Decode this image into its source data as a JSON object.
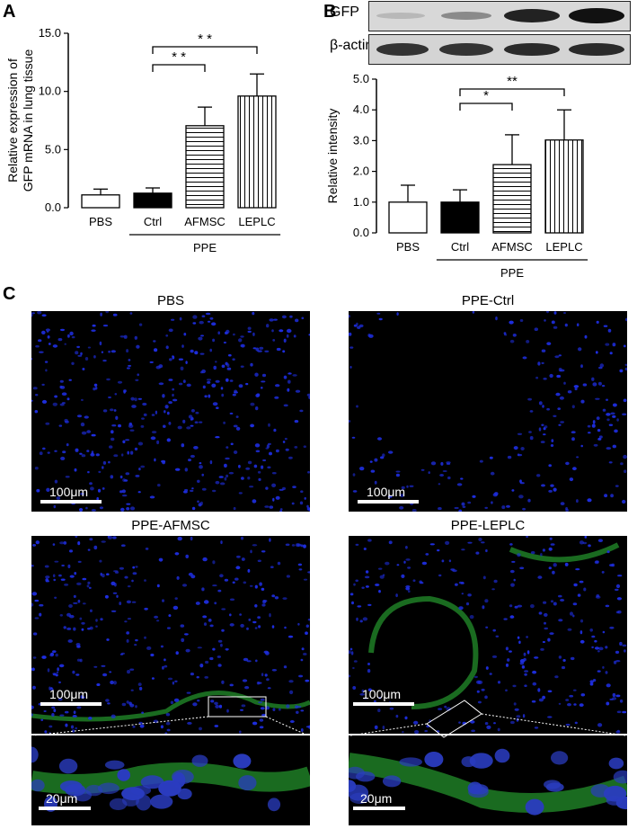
{
  "panels": {
    "a": "A",
    "b": "B",
    "c": "C"
  },
  "chart_data": [
    {
      "type": "bar",
      "panel": "A",
      "categories": [
        "PBS",
        "Ctrl",
        "AFMSC",
        "LEPLC"
      ],
      "values": [
        1.1,
        1.25,
        7.05,
        9.6
      ],
      "errors": [
        0.5,
        0.45,
        1.6,
        1.9
      ],
      "ylabel": [
        "Relative expression of",
        "GFP mRNA in lung tissue"
      ],
      "ylim": [
        0,
        15
      ],
      "yticks": [
        "0.0",
        "5.0",
        "10.0",
        "15.0"
      ],
      "group_label": "PPE",
      "significance": [
        {
          "from": "Ctrl",
          "to": "AFMSC",
          "label": "* *"
        },
        {
          "from": "Ctrl",
          "to": "LEPLC",
          "label": "* *"
        }
      ],
      "fills": [
        "white",
        "black",
        "horizontal-stripes",
        "vertical-stripes"
      ]
    },
    {
      "type": "bar",
      "panel": "B",
      "categories": [
        "PBS",
        "Ctrl",
        "AFMSC",
        "LEPLC"
      ],
      "values": [
        1.0,
        1.0,
        2.22,
        3.02
      ],
      "errors": [
        0.55,
        0.4,
        0.97,
        0.98
      ],
      "ylabel": "Relative intensity",
      "ylim": [
        0,
        5
      ],
      "yticks": [
        "0.0",
        "1.0",
        "2.0",
        "3.0",
        "4.0",
        "5.0"
      ],
      "group_label": "PPE",
      "significance": [
        {
          "from": "Ctrl",
          "to": "AFMSC",
          "label": "*"
        },
        {
          "from": "Ctrl",
          "to": "LEPLC",
          "label": "**"
        }
      ],
      "fills": [
        "white",
        "black",
        "horizontal-stripes",
        "vertical-stripes"
      ]
    }
  ],
  "blot": {
    "rows": [
      "GFP",
      "β-actin"
    ]
  },
  "micrographs": [
    {
      "title": "PBS",
      "scale": "100μm"
    },
    {
      "title": "PPE-Ctrl",
      "scale": "100μm"
    },
    {
      "title": "PPE-AFMSC",
      "scale": "100μm",
      "inset_scale": "20μm"
    },
    {
      "title": "PPE-LEPLC",
      "scale": "100μm",
      "inset_scale": "20μm"
    }
  ],
  "colors": {
    "nuclei": "#1e2ee0",
    "gfp": "#2fc23a",
    "background": "#000000"
  }
}
